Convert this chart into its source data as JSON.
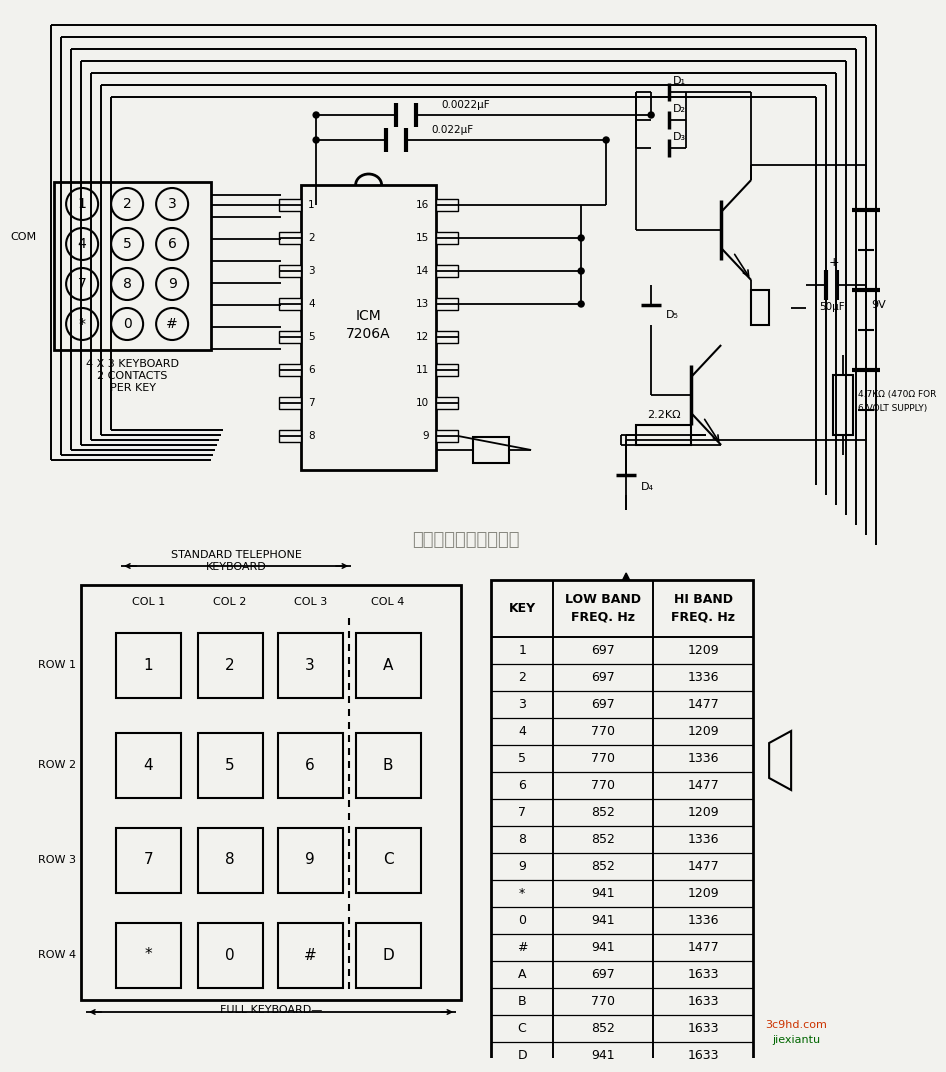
{
  "bg_color": "#f2f2ee",
  "freq_table": {
    "keys": [
      "1",
      "2",
      "3",
      "4",
      "5",
      "6",
      "7",
      "8",
      "9",
      "*",
      "0",
      "#",
      "A",
      "B",
      "C",
      "D"
    ],
    "low_band": [
      697,
      697,
      697,
      770,
      770,
      770,
      852,
      852,
      852,
      941,
      941,
      941,
      697,
      770,
      852,
      941
    ],
    "hi_band": [
      1209,
      1336,
      1477,
      1209,
      1336,
      1477,
      1209,
      1336,
      1477,
      1209,
      1336,
      1477,
      1633,
      1633,
      1633,
      1633
    ]
  },
  "keyboard_grid": {
    "cols": [
      "COL 1",
      "COL 2",
      "COL 3",
      "COL 4"
    ],
    "rows": [
      "ROW 1",
      "ROW 2",
      "ROW 3",
      "ROW 4"
    ],
    "keys": [
      [
        "1",
        "2",
        "3",
        "A"
      ],
      [
        "4",
        "5",
        "6",
        "B"
      ],
      [
        "7",
        "8",
        "9",
        "C"
      ],
      [
        "*",
        "0",
        "#",
        "D"
      ]
    ]
  },
  "small_keyboard": {
    "keys": [
      [
        "1",
        "2",
        "3"
      ],
      [
        "4",
        "5",
        "6"
      ],
      [
        "7",
        "8",
        "9"
      ],
      [
        "*",
        "0",
        "#"
      ]
    ]
  },
  "watermark": "杭州将睿科技有限公司",
  "site1": "3c9hd.com",
  "site2": "jiexiantu",
  "site1_color": "#cc3300",
  "site2_color": "#006600"
}
